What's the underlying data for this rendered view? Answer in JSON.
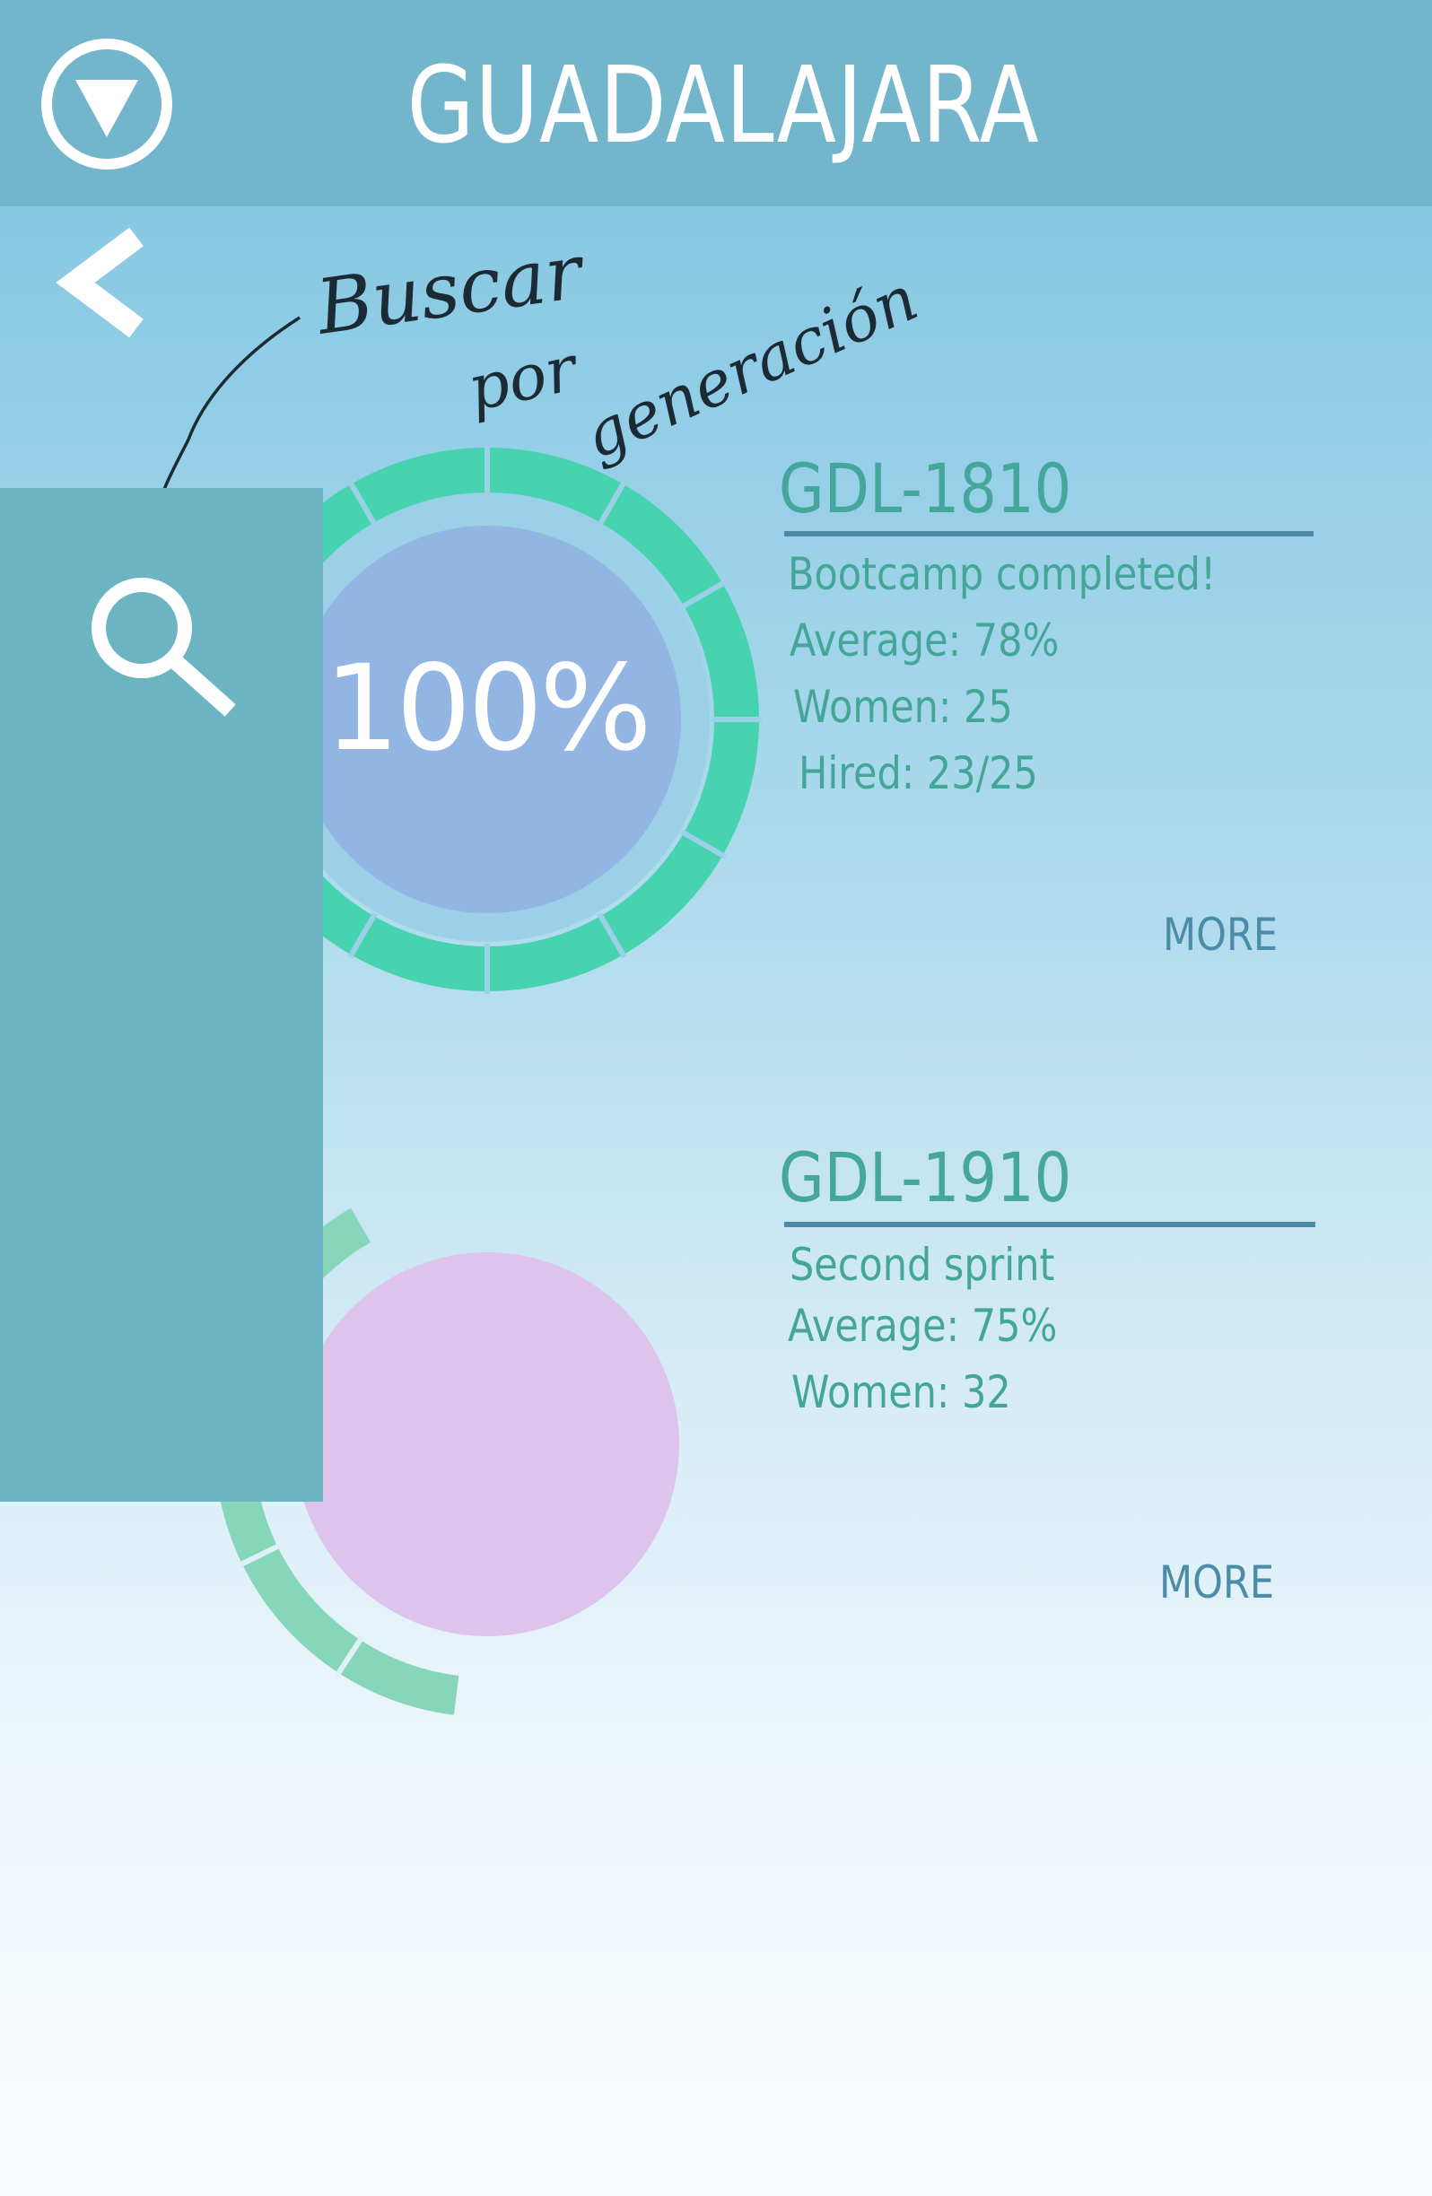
{
  "header": {
    "title": "GUADALAJARA",
    "menu_icon": "dropdown-triangle-icon"
  },
  "nav": {
    "back_icon": "chevron-left-icon"
  },
  "annotation": {
    "text_line1": "Buscar",
    "text_line2": "por",
    "text_line3": "generación"
  },
  "side_panel": {
    "search_icon": "search-icon"
  },
  "generations": [
    {
      "code": "GDL-1810",
      "progress_label": "100%",
      "progress": 1.0,
      "lines": [
        "Bootcamp completed!",
        "Average: 78%",
        "Women: 25",
        "Hired: 23/25"
      ],
      "more_label": "MORE",
      "ring_color": "#48d3b0",
      "center_color": "#93b5e3"
    },
    {
      "code": "GDL-1910",
      "progress_label": "",
      "lines": [
        "Second sprint",
        "Average: 75%",
        "Women: 32"
      ],
      "more_label": "MORE",
      "ring_color": "#86d6b9",
      "center_color": "#dec4ec"
    }
  ],
  "colors": {
    "header_bg": "#73b5cb",
    "panel_bg": "#6db4c3",
    "accent_green": "#45a79b",
    "rule_blue": "#4e8aa4",
    "more_blue": "#4b8da8"
  }
}
